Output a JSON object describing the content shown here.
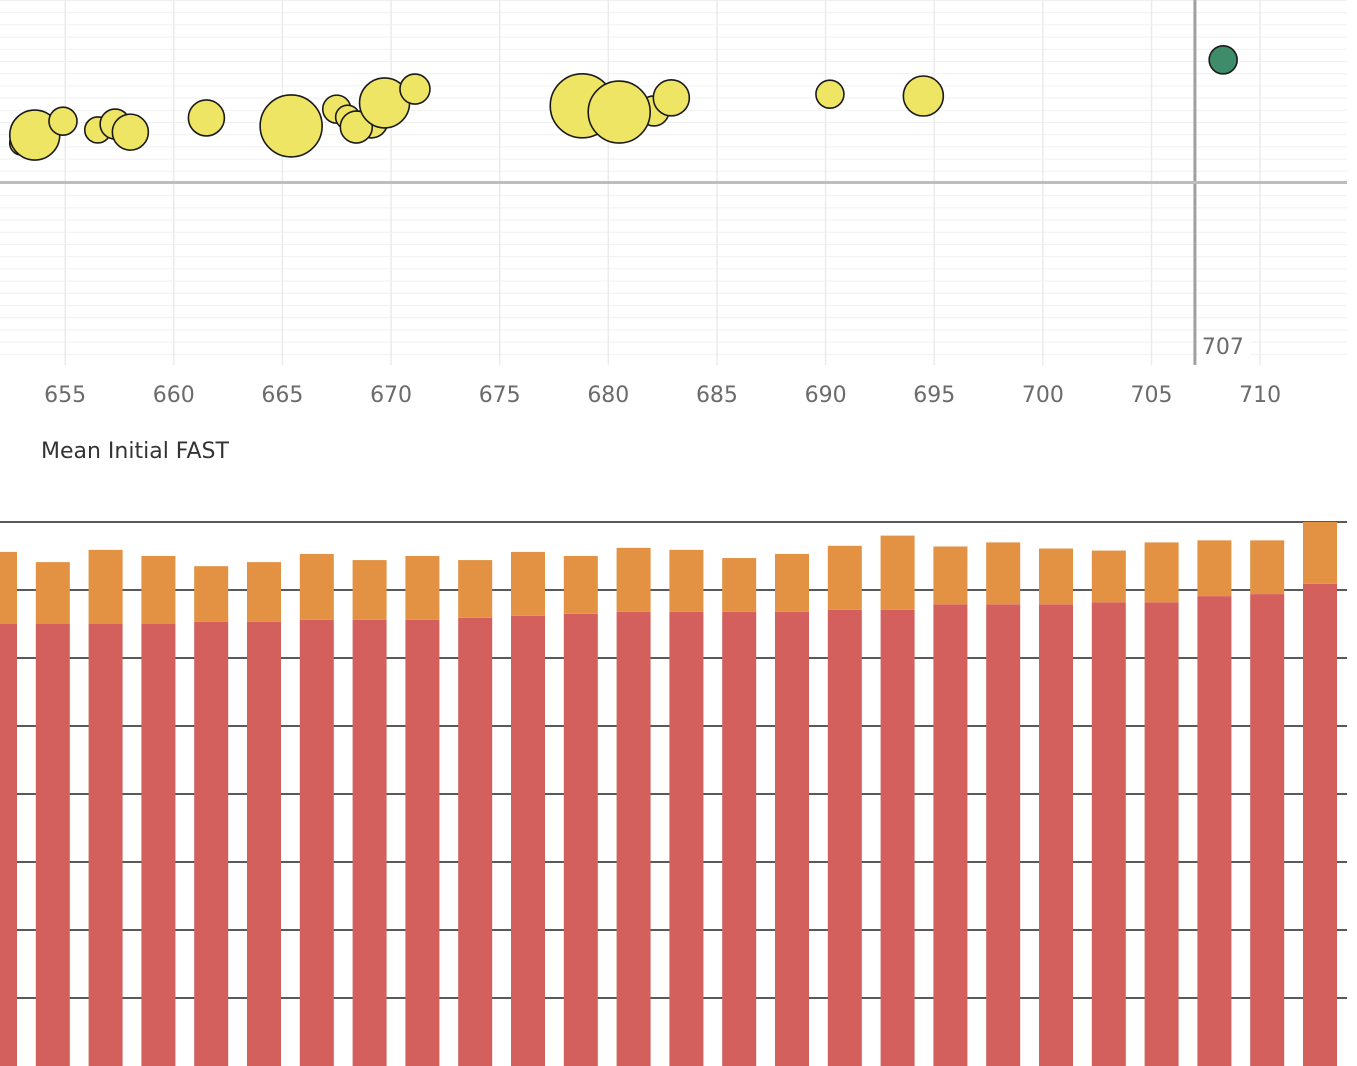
{
  "chart_data": [
    {
      "type": "scatter",
      "x_label": "Mean Initial FAST",
      "xlim": [
        652,
        714
      ],
      "xticks": [
        655,
        660,
        665,
        670,
        675,
        680,
        685,
        690,
        695,
        700,
        705,
        710
      ],
      "ylim": [
        0,
        100
      ],
      "grid": true,
      "series": [
        {
          "color": "#efe564",
          "x": [
            653.0,
            653.6,
            654.9,
            656.5,
            657.3,
            658.0,
            661.5,
            665.4,
            667.5,
            668.0,
            669.1,
            668.4,
            669.7,
            671.1,
            678.8,
            680.4,
            682.1,
            682.9,
            680.5,
            690.2,
            694.5
          ],
          "values": [
            60.8,
            63.0,
            66.8,
            64.4,
            66.0,
            63.8,
            67.7,
            65.5,
            70.1,
            67.9,
            66.6,
            65.2,
            71.8,
            75.6,
            71.0,
            72.9,
            69.6,
            73.2,
            69.3,
            74.2,
            73.7
          ],
          "sizes": [
            12,
            25,
            14,
            13,
            15,
            18,
            18,
            31,
            14,
            12,
            16,
            16,
            25,
            15,
            32,
            16,
            15,
            18,
            31,
            14,
            20
          ]
        },
        {
          "color": "#3e8c69",
          "x": [
            708.3
          ],
          "values": [
            83.6
          ],
          "sizes": [
            14
          ]
        }
      ],
      "reference_lines": [
        {
          "axis": "x",
          "value": 707,
          "label": 707
        },
        {
          "axis": "y",
          "value": 50
        }
      ]
    },
    {
      "type": "stacked_bar",
      "categories": [
        null,
        null,
        null,
        null,
        null,
        null,
        null,
        null,
        null,
        null,
        null,
        null,
        null,
        null,
        null,
        null,
        null,
        null,
        null,
        null,
        null,
        null,
        null,
        null,
        null,
        null
      ],
      "ylim": [
        0,
        8.2
      ],
      "yticks": [
        1,
        2,
        3,
        4,
        5,
        6,
        7,
        8
      ],
      "grid": true,
      "series": [
        {
          "color": "#d4605e",
          "values": [
            6.5,
            6.5,
            6.5,
            6.5,
            6.53,
            6.53,
            6.56,
            6.56,
            6.56,
            6.59,
            6.62,
            6.65,
            6.68,
            6.68,
            6.68,
            6.68,
            6.71,
            6.71,
            6.79,
            6.79,
            6.79,
            6.82,
            6.82,
            6.91,
            6.94,
            7.09
          ]
        },
        {
          "color": "#e39244",
          "values": [
            1.06,
            0.91,
            1.09,
            1.0,
            0.82,
            0.88,
            0.97,
            0.88,
            0.94,
            0.85,
            0.94,
            0.85,
            0.94,
            0.91,
            0.79,
            0.85,
            0.94,
            1.09,
            0.85,
            0.91,
            0.82,
            0.76,
            0.88,
            0.82,
            0.79,
            0.91
          ]
        }
      ]
    }
  ]
}
